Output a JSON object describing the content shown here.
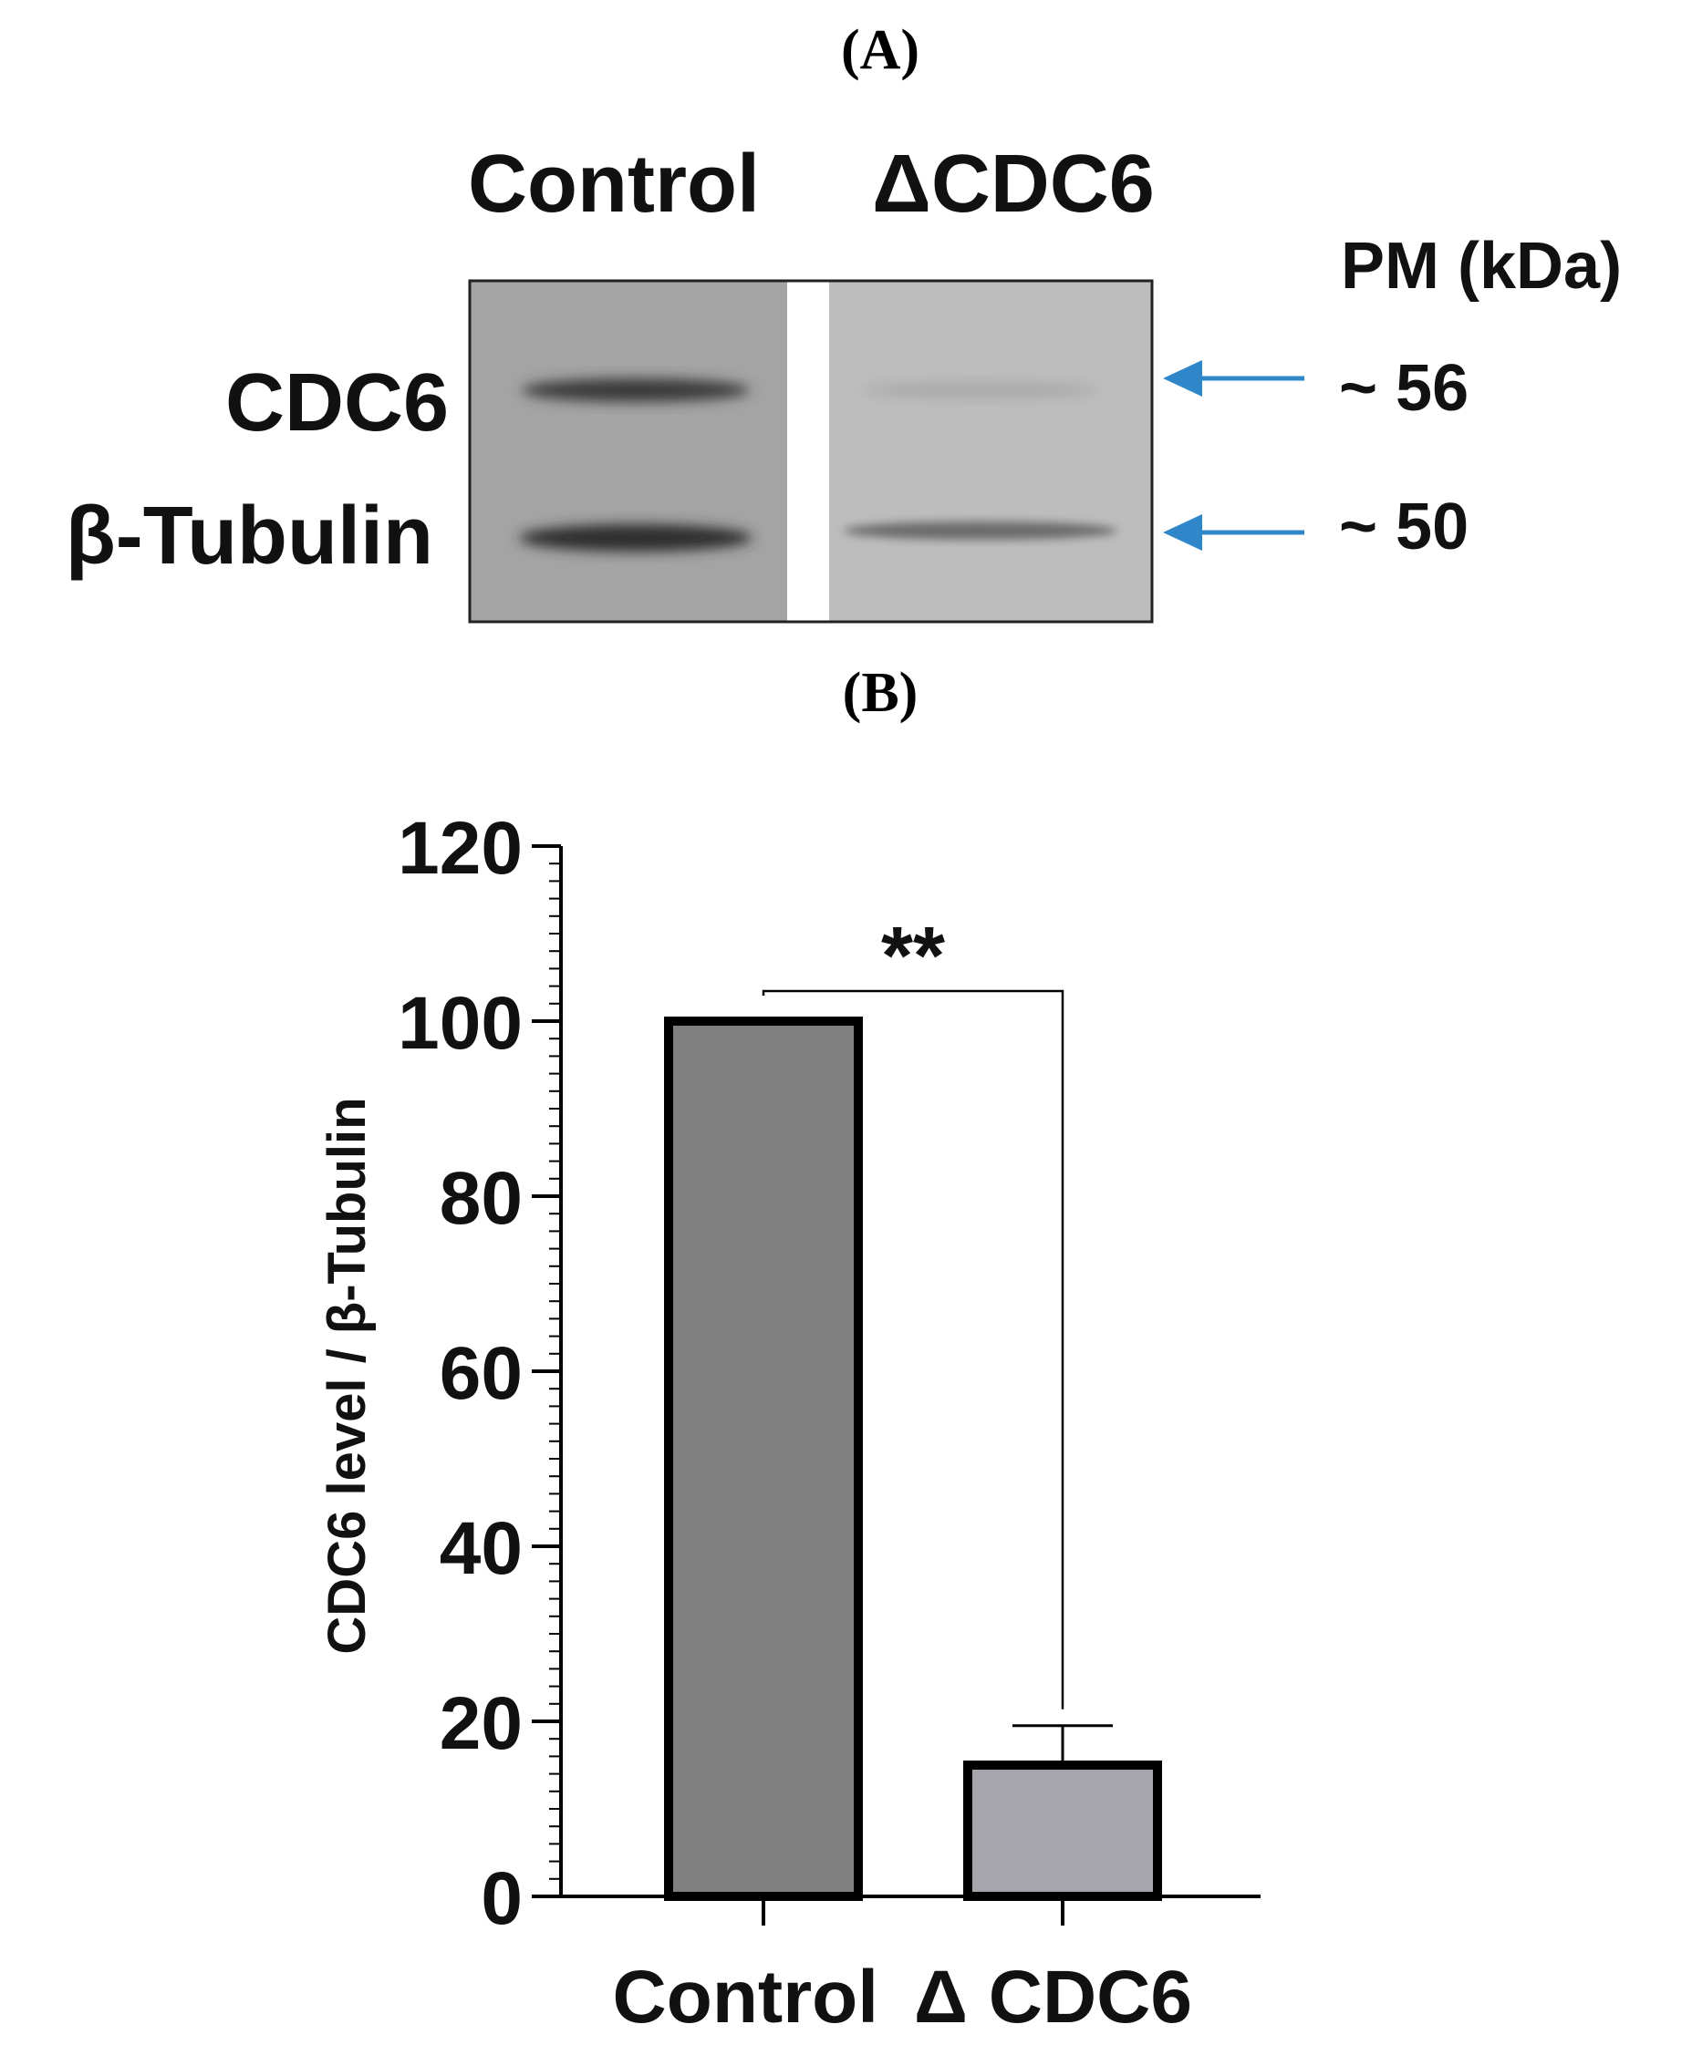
{
  "panel_a": {
    "label": "(A)",
    "lane_labels": [
      "Control",
      "ΔCDC6"
    ],
    "band_labels": [
      "CDC6",
      "β-Tubulin"
    ],
    "pm_header": "PM (kDa)",
    "markers": [
      "~ 56",
      "~ 50"
    ],
    "arrow_color": "#2f86c8"
  },
  "panel_b": {
    "label": "(B)"
  },
  "chart_data": {
    "type": "bar",
    "categories": [
      "Control",
      "Δ CDC6"
    ],
    "values": [
      100,
      15
    ],
    "error_plus": [
      0,
      4.5
    ],
    "ylabel": "CDC6 level / β-Tubulin",
    "ylim": [
      0,
      120
    ],
    "yticks": [
      0,
      20,
      40,
      60,
      80,
      100,
      120
    ],
    "yticklabels": [
      "0",
      "20",
      "40",
      "60",
      "80",
      "100",
      "120"
    ],
    "minor_tick_step": 2,
    "bar_colors": [
      "#808080",
      "#a6a5ab"
    ],
    "significance": {
      "between": [
        0,
        1
      ],
      "label": "**"
    },
    "grid": false
  }
}
